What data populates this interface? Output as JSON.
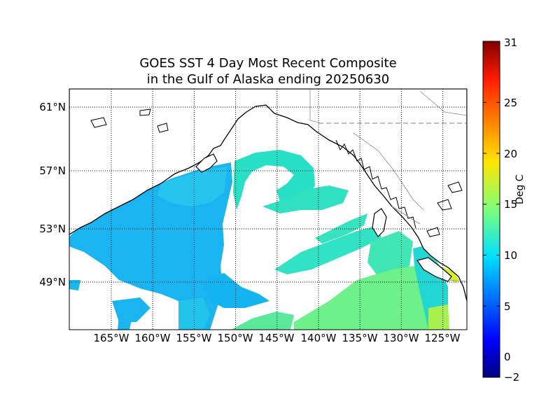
{
  "title": {
    "line1": "GOES SST 4 Day Most Recent Composite",
    "line2": "in the Gulf of Alaska ending 20250630"
  },
  "map": {
    "lon_range": [
      -170,
      -121
    ],
    "lat_range": [
      46,
      62
    ],
    "lat_labels": [
      "61°N",
      "57°N",
      "53°N",
      "49°N"
    ],
    "lat_values": [
      61,
      57,
      53,
      49
    ],
    "lon_labels": [
      "165°W",
      "160°W",
      "155°W",
      "150°W",
      "145°W",
      "140°W",
      "135°W",
      "130°W",
      "125°W"
    ],
    "lon_values": [
      -165,
      -160,
      -155,
      -150,
      -145,
      -140,
      -135,
      -130,
      -125
    ],
    "grid": true,
    "land_color": "#ffffff",
    "coast_color": "#000000"
  },
  "colorbar": {
    "unit": "Deg C",
    "range": [
      -2,
      31
    ],
    "tick_labels": [
      "31",
      "25",
      "20",
      "15",
      "10",
      "5",
      "0",
      "−2"
    ],
    "tick_values": [
      31,
      25,
      20,
      15,
      10,
      5,
      0,
      -2
    ],
    "colormap": "jet",
    "placement": "right"
  }
}
